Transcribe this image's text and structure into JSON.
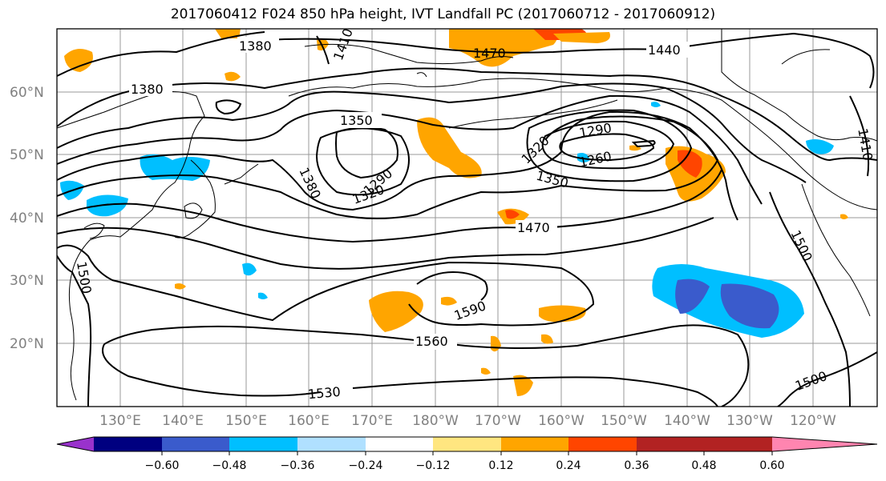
{
  "title": "2017060412 F024 850 hPa height, IVT Landfall PC (2017060712 - 2017060912)",
  "map": {
    "lat_labels": [
      "60°N",
      "50°N",
      "40°N",
      "30°N",
      "20°N"
    ],
    "lon_labels": [
      "130°E",
      "140°E",
      "150°E",
      "160°E",
      "170°E",
      "180°W",
      "170°W",
      "160°W",
      "150°W",
      "140°W",
      "130°W",
      "120°W"
    ],
    "contour_labels": [
      "1380",
      "1410",
      "1470",
      "1440",
      "1380",
      "1350",
      "1320",
      "1290",
      "1260",
      "1290",
      "1320",
      "1380",
      "1350",
      "1470",
      "1410",
      "1500",
      "1590",
      "1560",
      "1530",
      "1500",
      "1500"
    ]
  },
  "colorbar": {
    "ticks": [
      "−0.60",
      "−0.48",
      "−0.36",
      "−0.24",
      "−0.12",
      "0.12",
      "0.24",
      "0.36",
      "0.48",
      "0.60"
    ],
    "colors": [
      "#9932cc",
      "#000080",
      "#3a5bcc",
      "#00bfff",
      "#b0e0ff",
      "#ffffff",
      "#ffe680",
      "#ffa500",
      "#ff4500",
      "#b22222",
      "#ff85b0"
    ]
  }
}
